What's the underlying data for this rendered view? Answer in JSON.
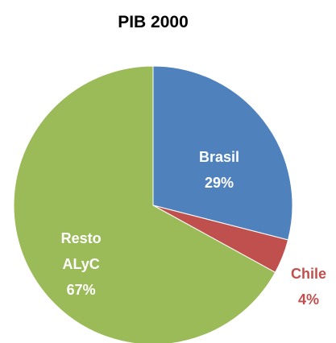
{
  "chart_data": {
    "type": "pie",
    "title": "PIB 2000",
    "categories": [
      "Brasil",
      "Chile",
      "Resto ALyC"
    ],
    "values": [
      29,
      4,
      67
    ],
    "value_labels": [
      "29%",
      "4%",
      "67%"
    ],
    "colors": [
      "#4f81bd",
      "#c0504d",
      "#9bbb59"
    ]
  }
}
